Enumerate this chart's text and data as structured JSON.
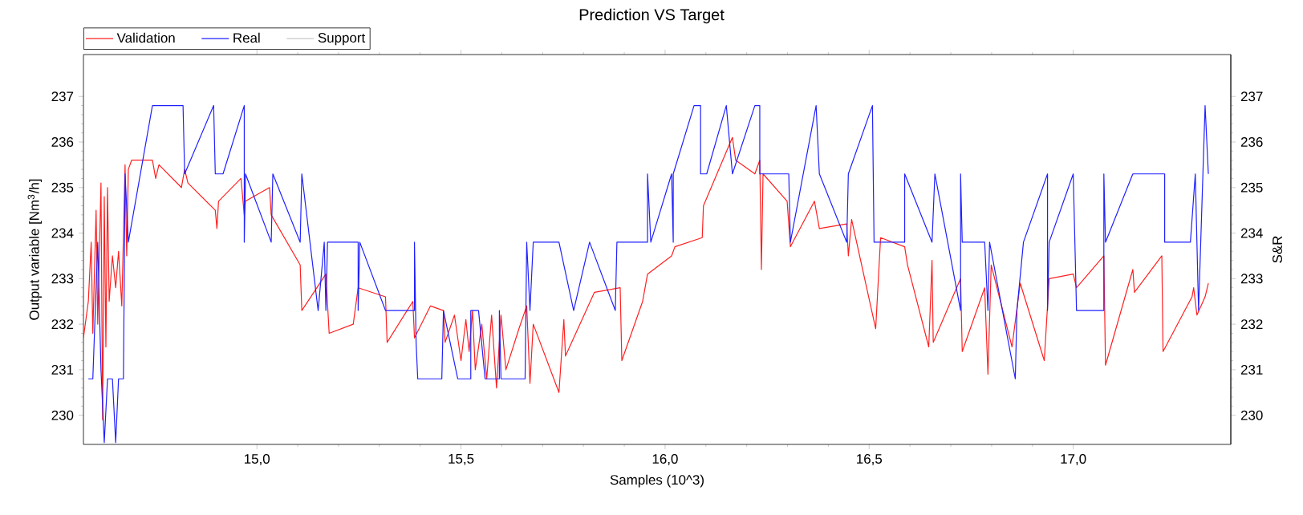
{
  "chart_data": {
    "type": "line",
    "title": "Prediction VS Target",
    "xlabel": "Samples (10^3)",
    "ylabel": "Output variable  [Nm$^{3}$/h]",
    "y2label": "S&R",
    "xlim": [
      14.575,
      17.386
    ],
    "ylim": [
      229.36,
      237.92
    ],
    "y2lim": [
      229.36,
      237.92
    ],
    "xticks": [
      {
        "value": 15,
        "label": "15,0"
      },
      {
        "value": 15.5,
        "label": "15,5"
      },
      {
        "value": 16,
        "label": "16,0"
      },
      {
        "value": 16.5,
        "label": "16,5"
      },
      {
        "value": 17,
        "label": "17,0"
      }
    ],
    "yticks": [
      230,
      231,
      232,
      233,
      234,
      235,
      236,
      237
    ],
    "y2ticks": [
      230,
      231,
      232,
      233,
      234,
      235,
      236,
      237
    ],
    "legend": "top left",
    "marker": "none",
    "line_style": "solid",
    "series": [
      {
        "name": "Validation",
        "color": "#ff2020",
        "x": [
          14.575,
          14.587,
          14.594,
          14.598,
          14.606,
          14.61,
          14.618,
          14.622,
          14.626,
          14.63,
          14.634,
          14.638,
          14.646,
          14.654,
          14.661,
          14.669,
          14.677,
          14.681,
          14.685,
          14.693,
          14.744,
          14.752,
          14.76,
          14.815,
          14.823,
          14.831,
          14.898,
          14.902,
          14.906,
          14.961,
          14.969,
          14.972,
          15.031,
          15.035,
          15.106,
          15.11,
          15.169,
          15.177,
          15.236,
          15.248,
          15.315,
          15.319,
          15.382,
          15.386,
          15.425,
          15.457,
          15.461,
          15.484,
          15.5,
          15.512,
          15.52,
          15.528,
          15.535,
          15.551,
          15.563,
          15.575,
          15.587,
          15.598,
          15.61,
          15.642,
          15.661,
          15.669,
          15.677,
          15.74,
          15.752,
          15.756,
          15.827,
          15.89,
          15.894,
          15.945,
          15.957,
          16.016,
          16.024,
          16.091,
          16.094,
          16.165,
          16.173,
          16.22,
          16.232,
          16.236,
          16.24,
          16.299,
          16.307,
          16.366,
          16.378,
          16.445,
          16.449,
          16.457,
          16.516,
          16.528,
          16.587,
          16.594,
          16.646,
          16.654,
          16.657,
          16.724,
          16.728,
          16.783,
          16.791,
          16.799,
          16.85,
          16.87,
          16.929,
          16.941,
          17.0,
          17.008,
          17.075,
          17.079,
          17.146,
          17.15,
          17.217,
          17.22,
          17.291,
          17.295,
          17.303,
          17.323,
          17.331
        ],
        "values": [
          231.7,
          232.5,
          233.8,
          231.8,
          234.5,
          232.0,
          235.1,
          229.9,
          234.8,
          231.5,
          235.0,
          232.5,
          233.5,
          232.8,
          233.6,
          232.4,
          235.5,
          233.5,
          235.4,
          235.6,
          235.6,
          235.2,
          235.5,
          235.0,
          235.4,
          235.1,
          234.5,
          234.1,
          234.7,
          235.2,
          234.4,
          234.7,
          235.0,
          234.4,
          233.3,
          232.3,
          233.1,
          231.8,
          232.0,
          232.8,
          232.6,
          231.6,
          232.5,
          231.7,
          232.4,
          232.3,
          231.6,
          232.2,
          231.2,
          232.1,
          231.4,
          232.3,
          231.0,
          232.0,
          230.8,
          232.2,
          230.6,
          232.2,
          231.0,
          231.9,
          232.4,
          230.7,
          232.0,
          230.5,
          232.1,
          231.3,
          232.7,
          232.8,
          231.2,
          232.5,
          233.1,
          233.5,
          233.7,
          233.9,
          234.6,
          236.1,
          235.6,
          235.3,
          235.6,
          233.2,
          235.3,
          234.7,
          233.7,
          234.7,
          234.1,
          234.2,
          233.5,
          234.3,
          231.9,
          233.9,
          233.7,
          233.3,
          231.5,
          233.4,
          231.6,
          233.0,
          231.4,
          232.8,
          230.9,
          233.3,
          231.5,
          232.9,
          231.2,
          233.0,
          233.1,
          232.8,
          233.5,
          231.1,
          233.2,
          232.7,
          233.5,
          231.4,
          232.6,
          232.8,
          232.2,
          232.6,
          232.9
        ]
      },
      {
        "name": "Real",
        "color": "#2020ff",
        "x": [
          14.587,
          14.598,
          14.61,
          14.618,
          14.626,
          14.634,
          14.646,
          14.654,
          14.661,
          14.673,
          14.677,
          14.685,
          14.744,
          14.819,
          14.823,
          14.894,
          14.898,
          14.917,
          14.969,
          14.969,
          14.972,
          15.035,
          15.039,
          15.106,
          15.11,
          15.15,
          15.165,
          15.169,
          15.173,
          15.248,
          15.248,
          15.252,
          15.315,
          15.386,
          15.386,
          15.39,
          15.394,
          15.453,
          15.457,
          15.492,
          15.524,
          15.524,
          15.543,
          15.559,
          15.594,
          15.594,
          15.598,
          15.657,
          15.661,
          15.669,
          15.677,
          15.74,
          15.776,
          15.815,
          15.878,
          15.882,
          15.957,
          15.957,
          15.965,
          16.016,
          16.02,
          16.02,
          16.071,
          16.087,
          16.087,
          16.102,
          16.15,
          16.165,
          16.22,
          16.232,
          16.232,
          16.303,
          16.307,
          16.37,
          16.378,
          16.445,
          16.449,
          16.508,
          16.512,
          16.587,
          16.587,
          16.654,
          16.661,
          16.724,
          16.724,
          16.728,
          16.783,
          16.791,
          16.795,
          16.858,
          16.862,
          16.878,
          16.937,
          16.937,
          16.941,
          17.0,
          17.004,
          17.008,
          17.075,
          17.075,
          17.079,
          17.146,
          17.224,
          17.224,
          17.287,
          17.299,
          17.307,
          17.323,
          17.331
        ],
        "values": [
          230.8,
          230.8,
          233.8,
          231.0,
          229.4,
          230.8,
          230.8,
          229.4,
          230.8,
          230.8,
          235.3,
          233.8,
          236.8,
          236.8,
          235.3,
          236.8,
          235.3,
          235.3,
          236.8,
          233.8,
          235.3,
          233.8,
          235.3,
          233.8,
          235.3,
          232.3,
          233.8,
          232.3,
          233.8,
          233.8,
          232.3,
          233.8,
          232.3,
          232.3,
          233.8,
          231.6,
          230.8,
          230.8,
          232.3,
          230.8,
          230.8,
          232.3,
          232.3,
          230.8,
          230.8,
          232.3,
          230.8,
          230.8,
          233.8,
          232.3,
          233.8,
          233.8,
          232.3,
          233.8,
          232.3,
          233.8,
          233.8,
          235.3,
          233.8,
          235.3,
          233.8,
          235.3,
          236.8,
          236.8,
          235.3,
          235.3,
          236.8,
          235.3,
          236.8,
          236.8,
          235.3,
          235.3,
          233.8,
          236.8,
          235.3,
          233.8,
          235.3,
          236.8,
          233.8,
          233.8,
          235.3,
          233.8,
          235.3,
          232.3,
          235.3,
          233.8,
          233.8,
          232.3,
          233.8,
          230.8,
          232.3,
          233.8,
          235.3,
          232.3,
          233.8,
          235.3,
          233.8,
          232.3,
          232.3,
          235.3,
          233.8,
          235.3,
          235.3,
          233.8,
          233.8,
          235.3,
          232.3,
          236.8,
          235.3
        ]
      },
      {
        "name": "Support",
        "color": "#c8c8c8",
        "values": [
          null
        ]
      }
    ]
  }
}
